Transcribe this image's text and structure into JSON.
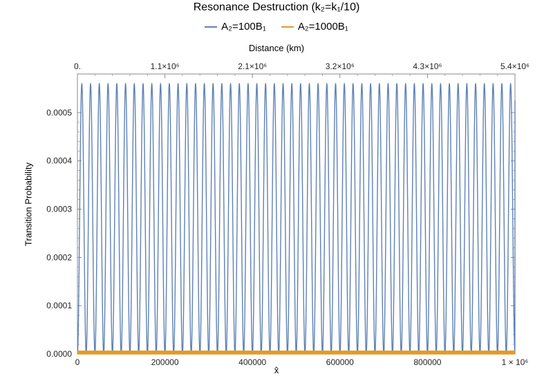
{
  "chart_data": {
    "type": "line",
    "title": "Resonance Destruction (k₂=k₁/10)",
    "xlabel": "x̂",
    "ylabel": "Transition Probability",
    "top_axis_label": "Distance (km)",
    "x_ticks": [
      "0",
      "200000",
      "400000",
      "600000",
      "800000",
      "1 × 10⁶"
    ],
    "x_tick_values": [
      0,
      200000,
      400000,
      600000,
      800000,
      1000000
    ],
    "top_ticks": [
      "0.",
      "1.1×10⁶",
      "2.1×10⁶",
      "3.2×10⁶",
      "4.3×10⁶",
      "5.4×10⁶"
    ],
    "y_ticks": [
      "0.0000",
      "0.0001",
      "0.0002",
      "0.0003",
      "0.0004",
      "0.0005"
    ],
    "y_tick_values": [
      0,
      0.0001,
      0.0002,
      0.0003,
      0.0004,
      0.0005
    ],
    "xlim": [
      0,
      1000000
    ],
    "ylim": [
      0,
      0.00058
    ],
    "grid": false,
    "legend_position": "top",
    "series": [
      {
        "name": "A₂=100B₁",
        "color": "#5E81B5",
        "shape": "oscillation",
        "amplitude": 0.00056,
        "period": 20000,
        "phase_offset": 0,
        "end_value": 0.000525
      },
      {
        "name": "A₂=1000B₁",
        "color": "#E19C24",
        "shape": "oscillation",
        "amplitude": 6e-06,
        "period": 2000,
        "phase_offset": 0,
        "end_value": 3e-06
      }
    ]
  }
}
